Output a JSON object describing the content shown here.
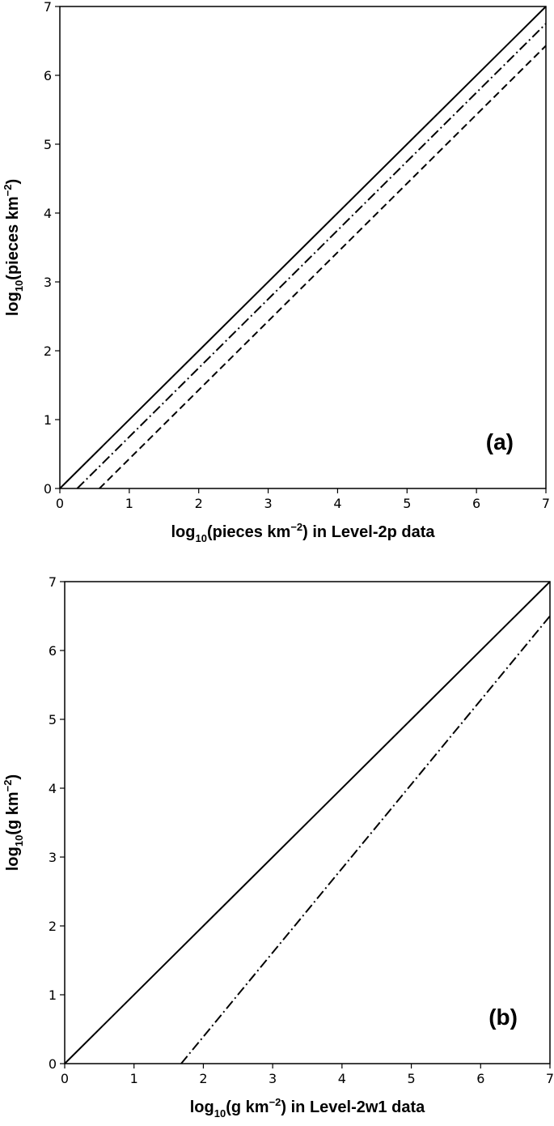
{
  "chart_data": [
    {
      "type": "line",
      "panel_label": "(a)",
      "xlabel": {
        "prefix": "log",
        "sub": "10",
        "mid": "(pieces km",
        "sup": "−2",
        "suffix": ") in Level-2p data"
      },
      "ylabel": {
        "prefix": "log",
        "sub": "10",
        "mid": "(pieces km",
        "sup": "−2",
        "suffix": ")"
      },
      "xlim": [
        0,
        7
      ],
      "ylim": [
        0,
        7
      ],
      "xticks": [
        "0",
        "1",
        "2",
        "3",
        "4",
        "5",
        "6",
        "7"
      ],
      "yticks": [
        "0",
        "1",
        "2",
        "3",
        "4",
        "5",
        "6",
        "7"
      ],
      "grid": false,
      "series": [
        {
          "style": "solid",
          "x": [
            0,
            7
          ],
          "y": [
            0,
            7
          ]
        },
        {
          "style": "dashdot",
          "x": [
            0.25,
            7
          ],
          "y": [
            0,
            6.75
          ]
        },
        {
          "style": "dashed",
          "x": [
            0.57,
            7
          ],
          "y": [
            0,
            6.43
          ]
        }
      ]
    },
    {
      "type": "line",
      "panel_label": "(b)",
      "xlabel": {
        "prefix": "log",
        "sub": "10",
        "mid": "(g km",
        "sup": "−2",
        "suffix": ") in Level-2w1 data"
      },
      "ylabel": {
        "prefix": "log",
        "sub": "10",
        "mid": "(g km",
        "sup": "−2",
        "suffix": ")"
      },
      "xlim": [
        0,
        7
      ],
      "ylim": [
        0,
        7
      ],
      "xticks": [
        "0",
        "1",
        "2",
        "3",
        "4",
        "5",
        "6",
        "7"
      ],
      "yticks": [
        "0",
        "1",
        "2",
        "3",
        "4",
        "5",
        "6",
        "7"
      ],
      "grid": false,
      "series": [
        {
          "style": "solid",
          "x": [
            0,
            7
          ],
          "y": [
            0,
            7
          ]
        },
        {
          "style": "dashdot",
          "x": [
            1.68,
            7
          ],
          "y": [
            0,
            6.5
          ]
        }
      ]
    }
  ]
}
